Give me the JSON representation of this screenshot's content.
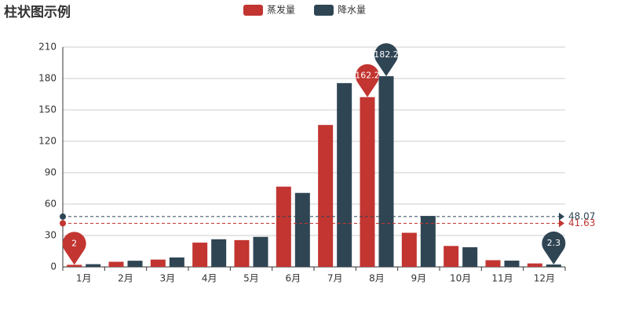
{
  "chart_data": {
    "type": "bar",
    "title": "柱状图示例",
    "categories": [
      "1月",
      "2月",
      "3月",
      "4月",
      "5月",
      "6月",
      "7月",
      "8月",
      "9月",
      "10月",
      "11月",
      "12月"
    ],
    "series": [
      {
        "name": "蒸发量",
        "color": "#c23531",
        "values": [
          2.0,
          4.9,
          7.0,
          23.2,
          25.6,
          76.7,
          135.6,
          162.2,
          32.6,
          20.0,
          6.4,
          3.3
        ],
        "average": 41.63
      },
      {
        "name": "降水量",
        "color": "#2f4554",
        "values": [
          2.6,
          5.9,
          9.0,
          26.4,
          28.7,
          70.7,
          175.6,
          182.2,
          48.7,
          18.8,
          6.0,
          2.3
        ],
        "average": 48.07
      }
    ],
    "ylim": [
      0,
      210
    ],
    "yticks": [
      0,
      30,
      60,
      90,
      120,
      150,
      180,
      210
    ],
    "grid": true,
    "legend": "top"
  }
}
